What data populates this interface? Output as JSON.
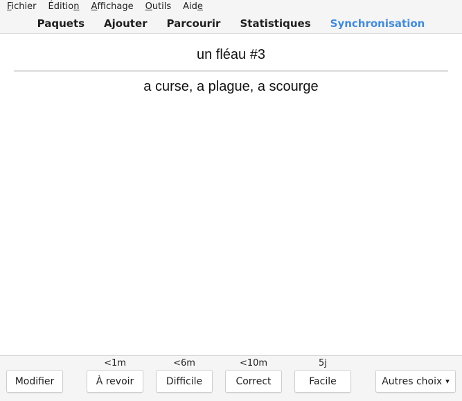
{
  "menu": [
    {
      "pre": "",
      "acc": "F",
      "post": "ichier"
    },
    {
      "pre": "Éditio",
      "acc": "n",
      "post": ""
    },
    {
      "pre": "",
      "acc": "A",
      "post": "ffichage"
    },
    {
      "pre": "",
      "acc": "O",
      "post": "utils"
    },
    {
      "pre": "Aid",
      "acc": "e",
      "post": ""
    }
  ],
  "toolbar": {
    "decks": "Paquets",
    "add": "Ajouter",
    "browse": "Parcourir",
    "stats": "Statistiques",
    "sync": "Synchronisation",
    "sync_color": "#3f8be0"
  },
  "card": {
    "question": "un fléau #3",
    "answer": "a curse, a plague, a scourge"
  },
  "bottom": {
    "edit_label": "Modifier",
    "more_label": "Autres choix",
    "more_icon": "chevron-down-icon",
    "answers": [
      {
        "label": "À revoir",
        "due": "<1m"
      },
      {
        "label": "Difficile",
        "due": "<6m"
      },
      {
        "label": "Correct",
        "due": "<10m"
      },
      {
        "label": "Facile",
        "due": "5j"
      }
    ]
  }
}
